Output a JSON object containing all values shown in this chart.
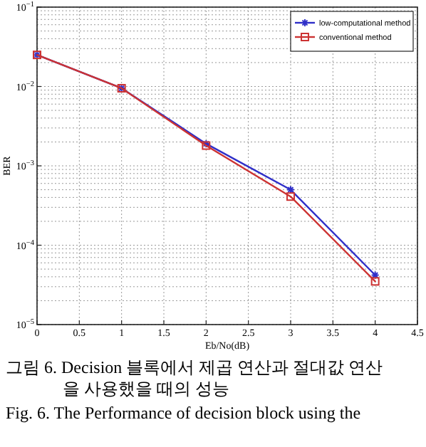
{
  "chart_data": {
    "type": "line",
    "xlabel": "Eb/No(dB)",
    "ylabel": "BER",
    "x": [
      0,
      1,
      2,
      3,
      4
    ],
    "series": [
      {
        "name": "low-computational method",
        "color": "#2f2fc8",
        "marker": "cross",
        "values": [
          0.025,
          0.0095,
          0.0019,
          0.0005,
          4.2e-05
        ]
      },
      {
        "name": "conventional method",
        "color": "#cc3333",
        "marker": "square",
        "values": [
          0.025,
          0.0095,
          0.0018,
          0.00041,
          3.5e-05
        ]
      }
    ],
    "log": "y",
    "xlim": [
      0,
      4.5
    ],
    "ylim": [
      1e-05,
      0.1
    ],
    "xticks": [
      0,
      0.5,
      1,
      1.5,
      2,
      2.5,
      3,
      3.5,
      4,
      4.5
    ],
    "yticks": [
      {
        "value": 1e-05,
        "label": "10$^{−5}$"
      },
      {
        "value": 0.0001,
        "label": "10$^{−4}$"
      },
      {
        "value": 0.001,
        "label": "10$^{−3}$"
      },
      {
        "value": 0.01,
        "label": "10$^{−2}$"
      },
      {
        "value": 0.1,
        "label": "10$^{−1}$"
      }
    ],
    "grid": true,
    "legend": "top right",
    "line_style": "solid",
    "annotations": [
      "그림 6. Decision 블록에서 제곱 연산과 절대값 연산",
      "을 사용했을 때의 성능",
      "Fig. 6. The Performance of decision block using the"
    ]
  }
}
